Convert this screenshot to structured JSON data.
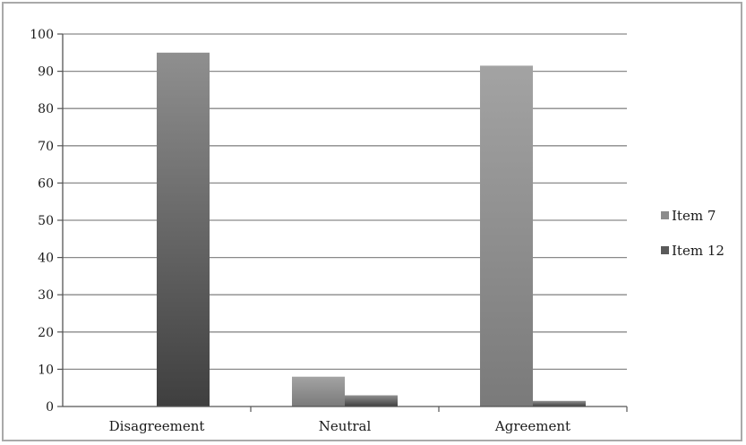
{
  "chart_data": {
    "type": "bar",
    "title": "",
    "xlabel": "",
    "ylabel": "",
    "categories": [
      "Disagreement",
      "Neutral",
      "Agreement"
    ],
    "series": [
      {
        "name": "Item 7",
        "values": [
          0,
          8,
          91.5
        ],
        "color": "#8c8c8c"
      },
      {
        "name": "Item 12",
        "values": [
          95,
          3,
          1.5
        ],
        "color": "#5a5a5a"
      }
    ],
    "ylim": [
      0,
      100
    ],
    "yticks": [
      0,
      10,
      20,
      30,
      40,
      50,
      60,
      70,
      80,
      90,
      100
    ],
    "grid": true,
    "legend": "right"
  }
}
